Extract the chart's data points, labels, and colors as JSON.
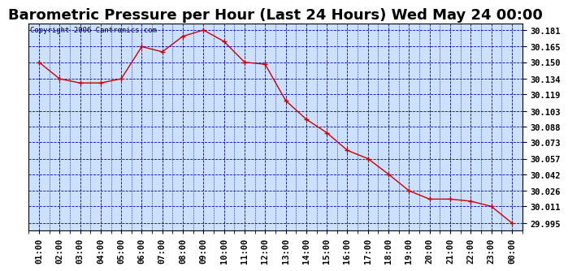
{
  "title": "Barometric Pressure per Hour (Last 24 Hours) Wed May 24 00:00",
  "copyright": "Copyright 2006 Cantronics.com",
  "x_labels": [
    "01:00",
    "02:00",
    "03:00",
    "04:00",
    "05:00",
    "06:00",
    "07:00",
    "08:00",
    "09:00",
    "10:00",
    "11:00",
    "12:00",
    "13:00",
    "14:00",
    "15:00",
    "16:00",
    "17:00",
    "18:00",
    "19:00",
    "20:00",
    "21:00",
    "22:00",
    "23:00",
    "00:00"
  ],
  "y_values": [
    30.15,
    30.134,
    30.13,
    30.13,
    30.134,
    30.165,
    30.16,
    30.175,
    30.181,
    30.17,
    30.15,
    30.148,
    30.113,
    30.095,
    30.082,
    30.065,
    30.057,
    30.042,
    30.026,
    30.018,
    30.018,
    30.016,
    30.011,
    29.995
  ],
  "yticks": [
    29.995,
    30.011,
    30.026,
    30.042,
    30.057,
    30.073,
    30.088,
    30.103,
    30.119,
    30.134,
    30.15,
    30.165,
    30.181
  ],
  "ylim_min": 29.988,
  "ylim_max": 30.1875,
  "line_color": "#cc0000",
  "marker": "+",
  "marker_color": "#cc0000",
  "marker_size": 4,
  "grid_color": "#0000bb",
  "bg_color": "#ffffff",
  "plot_bg_color": "#cce0ff",
  "title_fontsize": 13,
  "copyright_fontsize": 6.5,
  "tick_fontsize": 7.5,
  "xlabel_fontsize": 7.5
}
